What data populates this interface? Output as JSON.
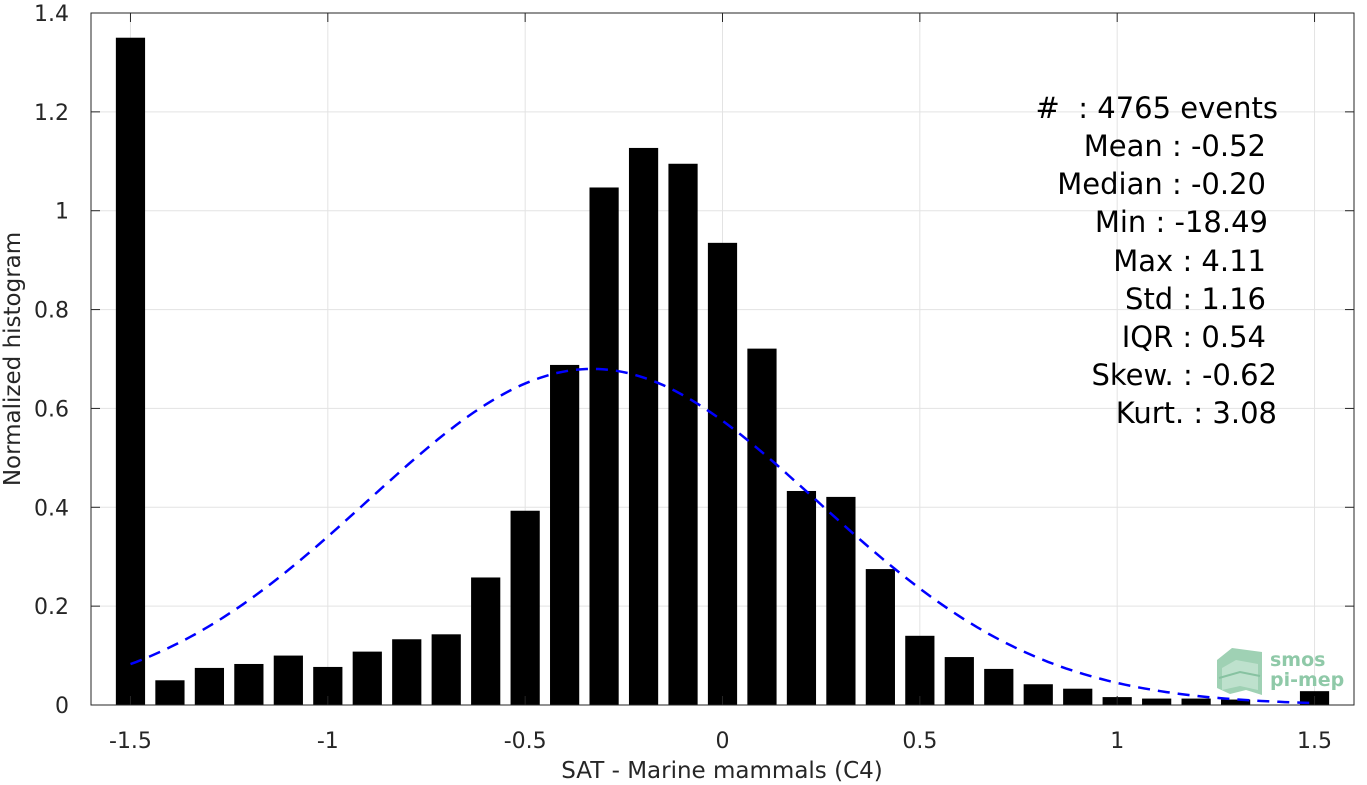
{
  "chart_data": {
    "type": "bar",
    "xlabel": "SAT - Marine mammals (C4)",
    "ylabel": "Normalized histogram",
    "xlim": [
      -1.6,
      1.6
    ],
    "ylim": [
      0,
      1.4
    ],
    "xticks": [
      -1.5,
      -1,
      -0.5,
      0,
      0.5,
      1,
      1.5
    ],
    "xtick_labels": [
      "-1.5",
      "-1",
      "-0.5",
      "0",
      "0.5",
      "1",
      "1.5"
    ],
    "yticks": [
      0,
      0.2,
      0.4,
      0.6,
      0.8,
      1,
      1.2,
      1.4
    ],
    "ytick_labels": [
      "0",
      "0.2",
      "0.4",
      "0.6",
      "0.8",
      "1",
      "1.2",
      "1.4"
    ],
    "grid": true,
    "bar_color": "#000000",
    "bin_width": 0.1,
    "x": [
      -1.5,
      -1.4,
      -1.3,
      -1.2,
      -1.1,
      -1.0,
      -0.9,
      -0.8,
      -0.7,
      -0.6,
      -0.5,
      -0.4,
      -0.3,
      -0.2,
      -0.1,
      0.0,
      0.1,
      0.2,
      0.3,
      0.4,
      0.5,
      0.6,
      0.7,
      0.8,
      0.9,
      1.0,
      1.1,
      1.2,
      1.3,
      1.4,
      1.5
    ],
    "values": [
      1.35,
      0.05,
      0.075,
      0.083,
      0.1,
      0.077,
      0.108,
      0.133,
      0.143,
      0.258,
      0.393,
      0.688,
      1.047,
      1.127,
      1.095,
      0.935,
      0.721,
      0.433,
      0.421,
      0.275,
      0.14,
      0.097,
      0.073,
      0.042,
      0.033,
      0.016,
      0.013,
      0.013,
      0.011,
      0.0,
      0.028
    ],
    "fit_curve": {
      "type": "normal",
      "mean": -0.33,
      "peak": 0.68,
      "sigma": 0.57,
      "x_range": [
        -1.5,
        1.5
      ],
      "color": "#0000ff",
      "style": "dashed"
    },
    "stats": [
      "#  : 4765 events",
      "Mean : -0.52",
      "Median : -0.20",
      "Min : -18.49",
      "Max : 4.11",
      "Std : 1.16",
      "IQR : 0.54",
      "Skew. : -0.62",
      "Kurt. : 3.08"
    ]
  },
  "logo": {
    "line1": "smos",
    "line2": "pi-mep"
  }
}
